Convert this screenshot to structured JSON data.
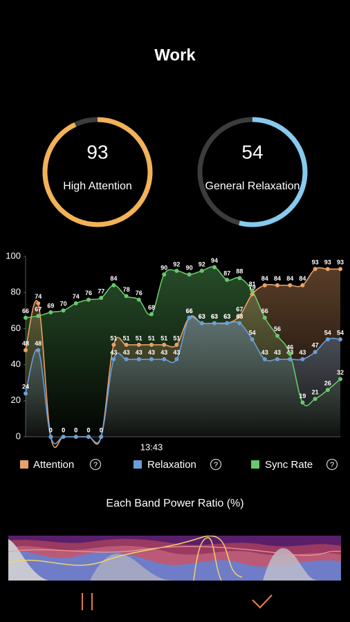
{
  "header": {
    "title": "Work"
  },
  "gauges": [
    {
      "value": 93,
      "label": "High Attention",
      "color": "#f2b257"
    },
    {
      "value": 54,
      "label": "General Relaxation",
      "color": "#86cbef"
    }
  ],
  "chart_data": {
    "type": "line",
    "categories": [
      null,
      null,
      null,
      null,
      null,
      null,
      null,
      null,
      null,
      null,
      "13:43",
      null,
      null,
      null,
      null,
      null,
      null,
      null,
      null,
      null,
      null,
      null,
      null,
      null,
      null,
      null
    ],
    "series": [
      {
        "name": "Attention",
        "color": "#e9a26a",
        "values": [
          48,
          74,
          0,
          0,
          0,
          0,
          0,
          51,
          51,
          51,
          51,
          51,
          51,
          66,
          63,
          63,
          63,
          67,
          79,
          84,
          84,
          84,
          84,
          93,
          93,
          93
        ]
      },
      {
        "name": "Relaxation",
        "color": "#6a9fd8",
        "values": [
          24,
          48,
          0,
          0,
          0,
          0,
          0,
          43,
          43,
          43,
          43,
          43,
          43,
          66,
          63,
          63,
          63,
          63,
          54,
          43,
          43,
          43,
          43,
          47,
          54,
          54
        ]
      },
      {
        "name": "Sync Rate",
        "color": "#67c96a",
        "values": [
          66,
          67,
          69,
          70,
          74,
          76,
          77,
          84,
          78,
          76,
          68,
          90,
          92,
          90,
          92,
          94,
          87,
          88,
          81,
          66,
          56,
          46,
          19,
          21,
          26,
          32
        ]
      }
    ],
    "ylim": [
      0,
      100
    ],
    "yticks": [
      0,
      20,
      40,
      60,
      80,
      100
    ],
    "area": true
  },
  "band_chart": {
    "title": "Each Band Power Ratio (%)"
  }
}
